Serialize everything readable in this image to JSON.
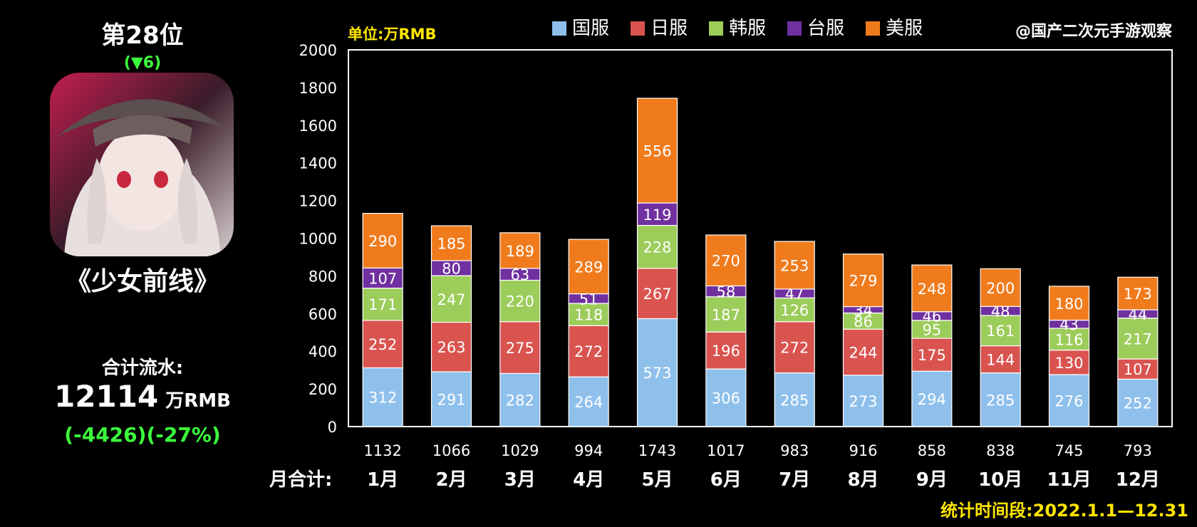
{
  "header": {
    "rank": "第28位",
    "rank_change": "(▼6)",
    "game_title": "《少女前线》",
    "total_label": "合计流水:",
    "total_value": "12114",
    "total_unit": "万RMB",
    "total_change": "(-4426)(-27%)",
    "watermark": "@国产二次元手游观察",
    "period": "统计时间段:2022.1.1—12.31"
  },
  "chart_data": {
    "type": "bar",
    "stacked": true,
    "unit_label": "单位:万RMB",
    "monthly_total_label": "月合计:",
    "categories": [
      "1月",
      "2月",
      "3月",
      "4月",
      "5月",
      "6月",
      "7月",
      "8月",
      "9月",
      "10月",
      "11月",
      "12月"
    ],
    "series": [
      {
        "name": "国服",
        "color": "#8fc0ec",
        "values": [
          312,
          291,
          282,
          264,
          573,
          306,
          285,
          273,
          294,
          285,
          276,
          252
        ]
      },
      {
        "name": "日服",
        "color": "#d9534f",
        "values": [
          252,
          263,
          275,
          272,
          267,
          196,
          272,
          244,
          175,
          144,
          130,
          107
        ]
      },
      {
        "name": "韩服",
        "color": "#9ccc5a",
        "values": [
          171,
          247,
          220,
          118,
          228,
          187,
          126,
          86,
          95,
          161,
          116,
          217
        ]
      },
      {
        "name": "台服",
        "color": "#7030a0",
        "values": [
          107,
          80,
          63,
          51,
          119,
          58,
          47,
          34,
          46,
          48,
          43,
          44
        ]
      },
      {
        "name": "美服",
        "color": "#f07b1c",
        "values": [
          290,
          185,
          189,
          289,
          556,
          270,
          253,
          279,
          248,
          200,
          180,
          173
        ]
      }
    ],
    "totals": [
      1132,
      1066,
      1029,
      994,
      1743,
      1017,
      983,
      916,
      858,
      838,
      745,
      793
    ],
    "ylim": [
      0,
      2000
    ],
    "yticks": [
      0,
      200,
      400,
      600,
      800,
      1000,
      1200,
      1400,
      1600,
      1800,
      2000
    ],
    "grid": false,
    "legend": "top"
  }
}
